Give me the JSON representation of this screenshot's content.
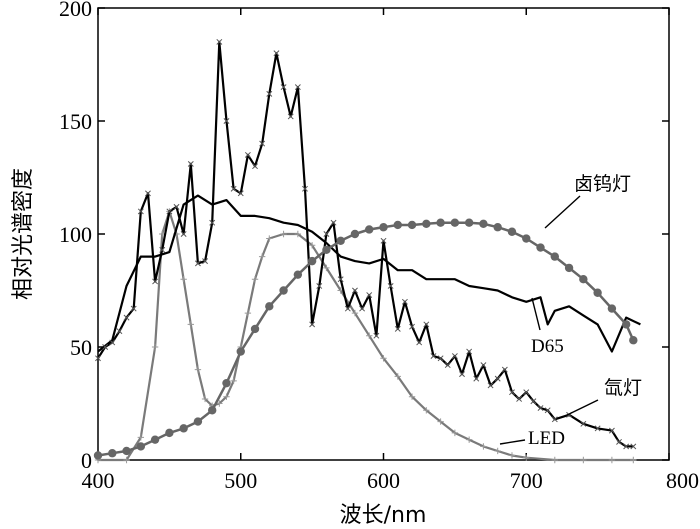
{
  "chart_data": {
    "type": "line",
    "title": "",
    "xlabel": "波长/nm",
    "ylabel": "相对光谱密度",
    "xlim": [
      400,
      800
    ],
    "ylim": [
      0,
      200
    ],
    "x_ticks": [
      400,
      500,
      600,
      700,
      800
    ],
    "y_ticks": [
      0,
      50,
      100,
      150,
      200
    ],
    "grid": false,
    "legend": "inline-labels",
    "series": [
      {
        "name": "D65",
        "color": "#000000",
        "marker": "none",
        "label_pos": [
          530,
          50
        ],
        "points": [
          [
            400,
            48
          ],
          [
            410,
            53
          ],
          [
            420,
            77
          ],
          [
            430,
            90
          ],
          [
            440,
            90
          ],
          [
            450,
            92
          ],
          [
            460,
            113
          ],
          [
            470,
            117
          ],
          [
            480,
            113
          ],
          [
            490,
            115
          ],
          [
            500,
            108
          ],
          [
            510,
            108
          ],
          [
            520,
            107
          ],
          [
            530,
            105
          ],
          [
            540,
            104
          ],
          [
            550,
            101
          ],
          [
            560,
            96
          ],
          [
            570,
            90
          ],
          [
            580,
            88
          ],
          [
            590,
            87
          ],
          [
            600,
            89
          ],
          [
            610,
            84
          ],
          [
            620,
            84
          ],
          [
            630,
            80
          ],
          [
            640,
            80
          ],
          [
            650,
            80
          ],
          [
            660,
            77
          ],
          [
            670,
            76
          ],
          [
            680,
            75
          ],
          [
            690,
            72
          ],
          [
            700,
            70
          ],
          [
            710,
            72
          ],
          [
            715,
            60
          ],
          [
            720,
            66
          ],
          [
            730,
            68
          ],
          [
            740,
            64
          ],
          [
            750,
            60
          ],
          [
            760,
            48
          ],
          [
            770,
            63
          ],
          [
            780,
            60
          ]
        ]
      },
      {
        "name": "氙灯",
        "color": "#000000",
        "marker": "x",
        "label_pos": [
          718,
          31
        ],
        "points": [
          [
            400,
            45
          ],
          [
            405,
            50
          ],
          [
            410,
            52
          ],
          [
            415,
            57
          ],
          [
            420,
            63
          ],
          [
            425,
            67
          ],
          [
            430,
            110
          ],
          [
            435,
            118
          ],
          [
            440,
            79
          ],
          [
            445,
            93
          ],
          [
            450,
            110
          ],
          [
            455,
            112
          ],
          [
            460,
            100
          ],
          [
            465,
            131
          ],
          [
            470,
            87
          ],
          [
            475,
            88
          ],
          [
            480,
            105
          ],
          [
            485,
            185
          ],
          [
            490,
            150
          ],
          [
            495,
            120
          ],
          [
            500,
            118
          ],
          [
            505,
            135
          ],
          [
            510,
            130
          ],
          [
            515,
            140
          ],
          [
            520,
            162
          ],
          [
            525,
            180
          ],
          [
            530,
            165
          ],
          [
            535,
            152
          ],
          [
            540,
            165
          ],
          [
            545,
            120
          ],
          [
            550,
            60
          ],
          [
            555,
            77
          ],
          [
            560,
            100
          ],
          [
            565,
            105
          ],
          [
            570,
            80
          ],
          [
            575,
            67
          ],
          [
            580,
            75
          ],
          [
            585,
            67
          ],
          [
            590,
            73
          ],
          [
            595,
            55
          ],
          [
            600,
            97
          ],
          [
            605,
            77
          ],
          [
            610,
            58
          ],
          [
            615,
            70
          ],
          [
            620,
            59
          ],
          [
            625,
            52
          ],
          [
            630,
            60
          ],
          [
            635,
            46
          ],
          [
            640,
            45
          ],
          [
            645,
            42
          ],
          [
            650,
            46
          ],
          [
            655,
            38
          ],
          [
            660,
            48
          ],
          [
            665,
            36
          ],
          [
            670,
            42
          ],
          [
            675,
            33
          ],
          [
            680,
            36
          ],
          [
            685,
            40
          ],
          [
            690,
            30
          ],
          [
            695,
            27
          ],
          [
            700,
            30
          ],
          [
            705,
            26
          ],
          [
            710,
            23
          ],
          [
            715,
            22
          ],
          [
            720,
            18
          ],
          [
            730,
            20
          ],
          [
            740,
            16
          ],
          [
            750,
            14
          ],
          [
            760,
            13
          ],
          [
            765,
            8
          ],
          [
            770,
            6
          ],
          [
            775,
            6
          ]
        ]
      },
      {
        "name": "LED",
        "color": "#7a7a7a",
        "marker": "+",
        "label_pos": [
          696,
          10
        ],
        "points": [
          [
            400,
            0
          ],
          [
            420,
            0
          ],
          [
            430,
            10
          ],
          [
            440,
            50
          ],
          [
            445,
            100
          ],
          [
            450,
            110
          ],
          [
            455,
            100
          ],
          [
            460,
            80
          ],
          [
            465,
            60
          ],
          [
            470,
            40
          ],
          [
            475,
            27
          ],
          [
            480,
            24
          ],
          [
            485,
            25
          ],
          [
            490,
            28
          ],
          [
            495,
            35
          ],
          [
            500,
            50
          ],
          [
            505,
            65
          ],
          [
            510,
            80
          ],
          [
            515,
            90
          ],
          [
            520,
            98
          ],
          [
            530,
            100
          ],
          [
            540,
            100
          ],
          [
            550,
            95
          ],
          [
            560,
            85
          ],
          [
            570,
            75
          ],
          [
            580,
            65
          ],
          [
            590,
            55
          ],
          [
            600,
            45
          ],
          [
            610,
            37
          ],
          [
            620,
            28
          ],
          [
            630,
            22
          ],
          [
            640,
            17
          ],
          [
            650,
            12
          ],
          [
            660,
            9
          ],
          [
            670,
            6
          ],
          [
            680,
            4
          ],
          [
            690,
            2
          ],
          [
            700,
            1
          ],
          [
            720,
            0
          ],
          [
            740,
            0
          ],
          [
            760,
            0
          ],
          [
            775,
            0
          ]
        ]
      },
      {
        "name": "卤钨灯",
        "color": "#666666",
        "marker": "o",
        "label_pos": [
          656,
          122
        ],
        "points": [
          [
            400,
            2
          ],
          [
            410,
            3
          ],
          [
            420,
            4
          ],
          [
            430,
            6
          ],
          [
            440,
            9
          ],
          [
            450,
            12
          ],
          [
            460,
            14
          ],
          [
            470,
            17
          ],
          [
            480,
            22
          ],
          [
            490,
            34
          ],
          [
            500,
            48
          ],
          [
            510,
            58
          ],
          [
            520,
            68
          ],
          [
            530,
            75
          ],
          [
            540,
            82
          ],
          [
            550,
            88
          ],
          [
            560,
            93
          ],
          [
            570,
            97
          ],
          [
            580,
            100
          ],
          [
            590,
            102
          ],
          [
            600,
            103
          ],
          [
            610,
            104
          ],
          [
            620,
            104
          ],
          [
            630,
            104.5
          ],
          [
            640,
            105
          ],
          [
            650,
            105
          ],
          [
            660,
            105
          ],
          [
            670,
            104.5
          ],
          [
            680,
            103
          ],
          [
            690,
            101
          ],
          [
            700,
            98
          ],
          [
            710,
            94
          ],
          [
            720,
            90
          ],
          [
            730,
            85
          ],
          [
            740,
            80
          ],
          [
            750,
            74
          ],
          [
            760,
            67
          ],
          [
            770,
            60
          ],
          [
            775,
            53
          ]
        ]
      }
    ]
  }
}
